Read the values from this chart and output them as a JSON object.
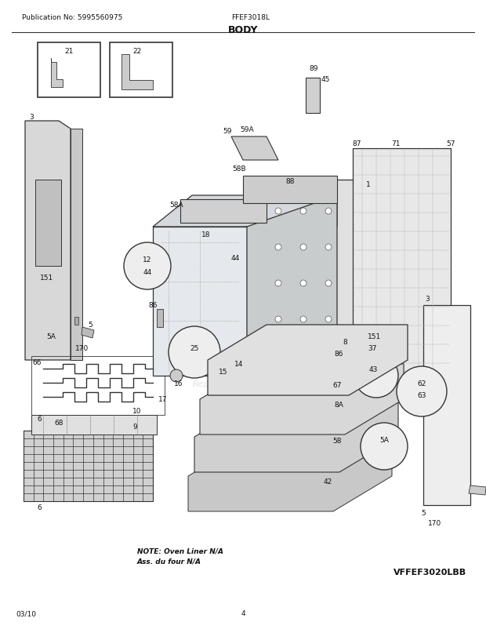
{
  "title": "BODY",
  "pub_no": "Publication No: 5995560975",
  "model": "FFEF3018L",
  "page": "4",
  "date": "03/10",
  "variant": "VFFEF3020LBB",
  "note_line1": "NOTE: Oven Liner N/A",
  "note_line2": "Ass. du four N/A",
  "bg_color": "#ffffff",
  "lc": "#333333",
  "fig_w": 6.2,
  "fig_h": 8.03,
  "dpi": 100
}
